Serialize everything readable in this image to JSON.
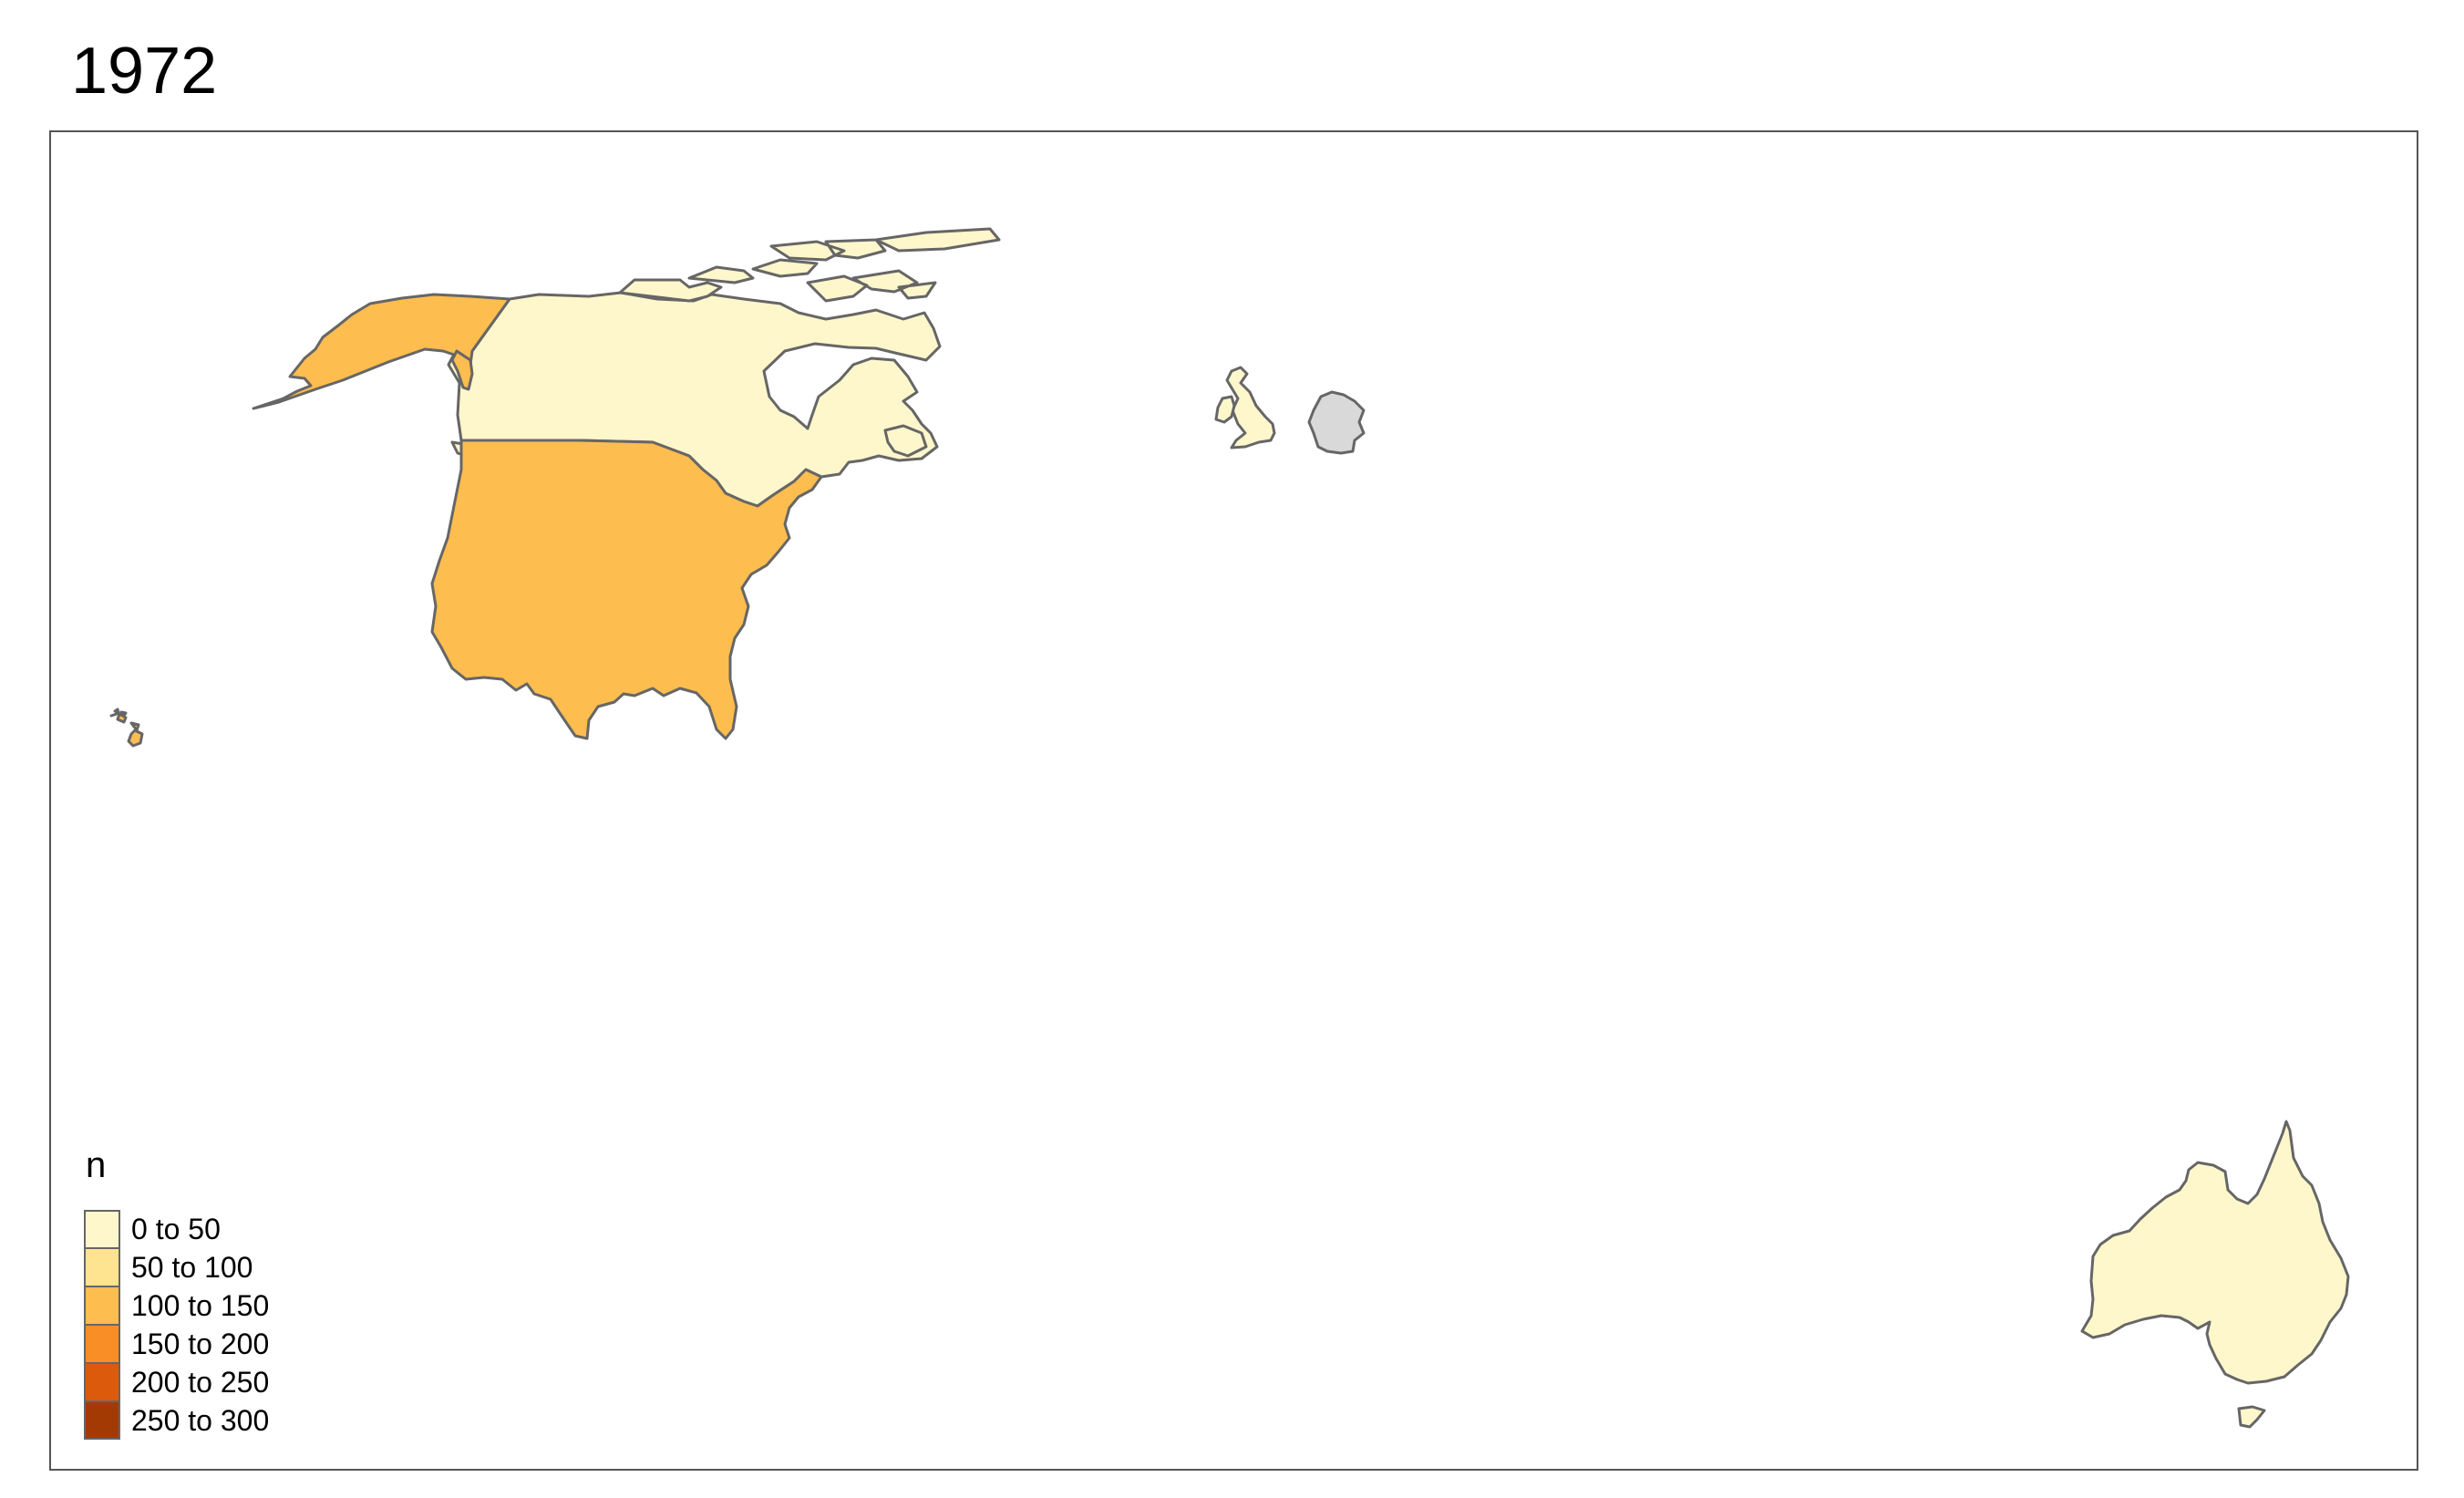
{
  "map": {
    "title": "1972",
    "legend": {
      "title": "n",
      "classes": [
        {
          "label": "0 to 50",
          "color": "#FFF7CC"
        },
        {
          "label": "50 to 100",
          "color": "#FEE391"
        },
        {
          "label": "100 to 150",
          "color": "#FEBD4F"
        },
        {
          "label": "150 to 200",
          "color": "#F98E27"
        },
        {
          "label": "200 to 250",
          "color": "#DC5A0B"
        },
        {
          "label": "250 to 300",
          "color": "#A33A03"
        }
      ]
    },
    "missing_color": "#D9D9D9",
    "border_color": "#666666",
    "regions": [
      {
        "name": "Canada",
        "class": 0
      },
      {
        "name": "United States",
        "class": 2
      },
      {
        "name": "Alaska",
        "class": 2
      },
      {
        "name": "Hawaii",
        "class": 2
      },
      {
        "name": "United Kingdom",
        "class": 0
      },
      {
        "name": "Ireland",
        "class": 0
      },
      {
        "name": "Germany",
        "class": null
      },
      {
        "name": "Australia",
        "class": 0
      },
      {
        "name": "Tasmania",
        "class": 0
      }
    ]
  }
}
